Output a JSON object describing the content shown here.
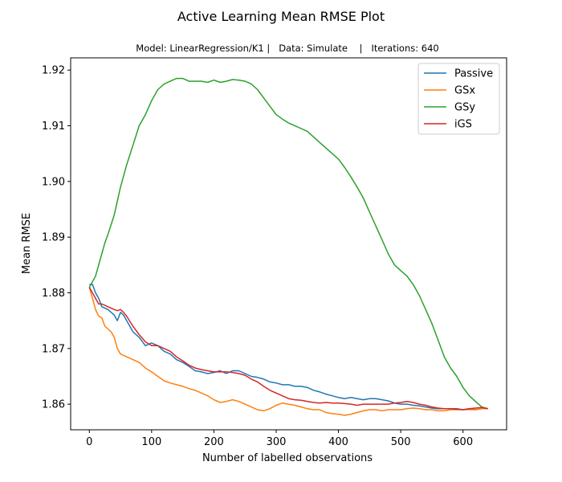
{
  "chart_data": {
    "type": "line",
    "title": "Active Learning Mean RMSE Plot",
    "subtitle": "Model: LinearRegression/K1 |   Data: Simulate    |   Iterations: 640",
    "xlabel": "Number of labelled observations",
    "ylabel": "Mean RMSE",
    "xlim": [
      -30,
      670
    ],
    "ylim": [
      1.8554,
      1.9222
    ],
    "xticks": [
      0,
      100,
      200,
      300,
      400,
      500,
      600
    ],
    "yticks": [
      1.86,
      1.87,
      1.88,
      1.89,
      1.9,
      1.91,
      1.92
    ],
    "ytick_labels": [
      "1.86",
      "1.87",
      "1.88",
      "1.89",
      "1.90",
      "1.91",
      "1.92"
    ],
    "grid": false,
    "legend_position": "top-right",
    "series": [
      {
        "name": "Passive",
        "color": "#1f77b4",
        "x": [
          0,
          5,
          10,
          15,
          20,
          30,
          40,
          45,
          50,
          55,
          60,
          70,
          80,
          90,
          100,
          110,
          120,
          130,
          140,
          150,
          160,
          170,
          180,
          190,
          200,
          210,
          220,
          230,
          240,
          250,
          260,
          270,
          280,
          290,
          300,
          310,
          320,
          330,
          340,
          350,
          360,
          370,
          380,
          390,
          400,
          410,
          420,
          430,
          440,
          450,
          460,
          470,
          480,
          490,
          500,
          510,
          520,
          530,
          540,
          550,
          560,
          570,
          580,
          590,
          600,
          610,
          620,
          630,
          640
        ],
        "y": [
          1.8815,
          1.8815,
          1.88,
          1.879,
          1.8775,
          1.877,
          1.876,
          1.875,
          1.8765,
          1.876,
          1.875,
          1.873,
          1.872,
          1.8705,
          1.871,
          1.8705,
          1.8695,
          1.869,
          1.868,
          1.8675,
          1.8668,
          1.866,
          1.8658,
          1.8655,
          1.8657,
          1.866,
          1.8655,
          1.866,
          1.866,
          1.8655,
          1.865,
          1.8648,
          1.8645,
          1.864,
          1.8638,
          1.8635,
          1.8635,
          1.8632,
          1.8632,
          1.863,
          1.8625,
          1.8622,
          1.8618,
          1.8615,
          1.8612,
          1.861,
          1.8612,
          1.861,
          1.8608,
          1.861,
          1.861,
          1.8608,
          1.8606,
          1.8602,
          1.86,
          1.86,
          1.8598,
          1.8597,
          1.8595,
          1.8593,
          1.8592,
          1.8592,
          1.8592,
          1.8592,
          1.859,
          1.8592,
          1.859,
          1.8592,
          1.8592
        ]
      },
      {
        "name": "GSx",
        "color": "#ff7f0e",
        "x": [
          0,
          5,
          10,
          15,
          20,
          25,
          30,
          35,
          40,
          45,
          50,
          60,
          70,
          80,
          90,
          100,
          110,
          120,
          130,
          140,
          150,
          160,
          170,
          180,
          190,
          200,
          210,
          220,
          230,
          240,
          250,
          260,
          270,
          280,
          290,
          300,
          310,
          320,
          330,
          340,
          350,
          360,
          370,
          380,
          390,
          400,
          410,
          420,
          430,
          440,
          450,
          460,
          470,
          480,
          490,
          500,
          510,
          520,
          530,
          540,
          550,
          560,
          570,
          580,
          590,
          600,
          610,
          620,
          630,
          640
        ],
        "y": [
          1.881,
          1.879,
          1.877,
          1.8758,
          1.8755,
          1.874,
          1.8735,
          1.873,
          1.872,
          1.87,
          1.869,
          1.8685,
          1.868,
          1.8675,
          1.8665,
          1.8658,
          1.865,
          1.8642,
          1.8638,
          1.8635,
          1.8632,
          1.8628,
          1.8625,
          1.862,
          1.8615,
          1.8608,
          1.8603,
          1.8605,
          1.8608,
          1.8605,
          1.86,
          1.8595,
          1.859,
          1.8588,
          1.8592,
          1.8598,
          1.8602,
          1.86,
          1.8598,
          1.8595,
          1.8592,
          1.859,
          1.859,
          1.8585,
          1.8583,
          1.8582,
          1.858,
          1.8582,
          1.8585,
          1.8588,
          1.859,
          1.859,
          1.8588,
          1.859,
          1.859,
          1.859,
          1.8592,
          1.8593,
          1.8592,
          1.859,
          1.859,
          1.8588,
          1.8588,
          1.859,
          1.859,
          1.859,
          1.859,
          1.859,
          1.8592,
          1.8592
        ]
      },
      {
        "name": "GSy",
        "color": "#2ca02c",
        "x": [
          0,
          5,
          10,
          15,
          20,
          25,
          30,
          40,
          50,
          60,
          70,
          80,
          90,
          100,
          110,
          120,
          130,
          140,
          150,
          160,
          170,
          180,
          190,
          200,
          210,
          220,
          230,
          240,
          250,
          260,
          270,
          280,
          290,
          300,
          310,
          320,
          330,
          340,
          350,
          360,
          370,
          380,
          390,
          400,
          410,
          420,
          430,
          440,
          450,
          460,
          470,
          480,
          490,
          500,
          510,
          520,
          530,
          540,
          550,
          560,
          570,
          580,
          590,
          600,
          610,
          620,
          630,
          640
        ],
        "y": [
          1.881,
          1.882,
          1.883,
          1.885,
          1.887,
          1.889,
          1.8905,
          1.894,
          1.899,
          1.903,
          1.9065,
          1.91,
          1.912,
          1.9145,
          1.9165,
          1.9175,
          1.918,
          1.9185,
          1.9185,
          1.918,
          1.918,
          1.918,
          1.9178,
          1.9182,
          1.9178,
          1.918,
          1.9183,
          1.9182,
          1.918,
          1.9175,
          1.9165,
          1.915,
          1.9135,
          1.912,
          1.9112,
          1.9105,
          1.91,
          1.9095,
          1.909,
          1.908,
          1.907,
          1.906,
          1.905,
          1.904,
          1.9025,
          1.9008,
          1.899,
          1.897,
          1.8945,
          1.892,
          1.8895,
          1.887,
          1.885,
          1.884,
          1.883,
          1.8815,
          1.8795,
          1.877,
          1.8745,
          1.8715,
          1.8685,
          1.8665,
          1.865,
          1.863,
          1.8615,
          1.8605,
          1.8595,
          1.8592
        ]
      },
      {
        "name": "iGS",
        "color": "#d62728",
        "x": [
          0,
          5,
          10,
          15,
          20,
          30,
          40,
          45,
          50,
          55,
          60,
          70,
          80,
          90,
          100,
          110,
          120,
          130,
          140,
          150,
          160,
          170,
          180,
          190,
          200,
          210,
          220,
          230,
          240,
          250,
          260,
          270,
          280,
          290,
          300,
          310,
          320,
          330,
          340,
          350,
          360,
          370,
          380,
          390,
          400,
          410,
          420,
          430,
          440,
          450,
          460,
          470,
          480,
          490,
          500,
          510,
          520,
          530,
          540,
          550,
          560,
          570,
          580,
          590,
          600,
          610,
          620,
          630,
          640
        ],
        "y": [
          1.881,
          1.88,
          1.879,
          1.878,
          1.878,
          1.8775,
          1.877,
          1.8768,
          1.877,
          1.8765,
          1.8758,
          1.874,
          1.8725,
          1.8712,
          1.8705,
          1.8705,
          1.87,
          1.8695,
          1.8685,
          1.8678,
          1.867,
          1.8665,
          1.8662,
          1.866,
          1.8658,
          1.8658,
          1.8658,
          1.8657,
          1.8655,
          1.8652,
          1.8645,
          1.864,
          1.8632,
          1.8625,
          1.862,
          1.8615,
          1.861,
          1.8608,
          1.8607,
          1.8605,
          1.8603,
          1.8602,
          1.8603,
          1.8602,
          1.8602,
          1.8601,
          1.86,
          1.8598,
          1.86,
          1.86,
          1.86,
          1.86,
          1.86,
          1.8602,
          1.8603,
          1.8605,
          1.8603,
          1.86,
          1.8598,
          1.8595,
          1.8593,
          1.8592,
          1.8592,
          1.8591,
          1.859,
          1.8592,
          1.8593,
          1.8594,
          1.8592
        ]
      }
    ]
  }
}
